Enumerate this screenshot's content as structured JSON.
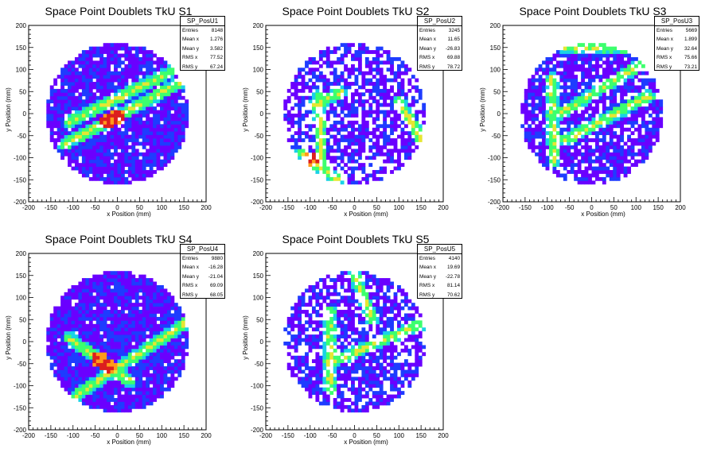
{
  "colors": {
    "white": "#ffffff",
    "violet": "#6a00ff",
    "blue": "#1e3cff",
    "cyan": "#19d2e6",
    "green": "#3cff6e",
    "yellow": "#e6e632",
    "orange": "#ff9a1a",
    "red": "#dc1e1e"
  },
  "chart_data": [
    {
      "type": "heatmap",
      "title": "Space Point Doublets TkU S1",
      "xlabel": "x Position (mm)",
      "ylabel": "y Position (mm)",
      "xlim": [
        -200,
        200
      ],
      "ylim": [
        -200,
        200
      ],
      "xticks": [
        "-200",
        "-150",
        "-100",
        "-50",
        "0",
        "50",
        "100",
        "150",
        "200"
      ],
      "yticks": [
        "-200",
        "-150",
        "-100",
        "-50",
        "0",
        "50",
        "100",
        "150",
        "200"
      ],
      "stats": {
        "name": "SP_PosU1",
        "rows": [
          [
            "Entries",
            "8148"
          ],
          [
            "Mean x",
            "1.276"
          ],
          [
            "Mean y",
            "3.582"
          ],
          [
            "RMS x",
            "77.52"
          ],
          [
            "RMS y",
            "67.24"
          ]
        ]
      },
      "footprint_radius": 160,
      "seed": 11,
      "empty_fraction": 0.08,
      "tracks": [
        {
          "x1": -120,
          "y1": -70,
          "x2": 160,
          "y2": 80,
          "hot": [
            -20,
            0
          ]
        },
        {
          "x1": -110,
          "y1": -20,
          "x2": 150,
          "y2": 110,
          "hot": []
        }
      ]
    },
    {
      "type": "heatmap",
      "title": "Space Point Doublets TkU S2",
      "xlabel": "x Position (mm)",
      "ylabel": "y Position (mm)",
      "xlim": [
        -200,
        200
      ],
      "ylim": [
        -200,
        200
      ],
      "xticks": [
        "-200",
        "-150",
        "-100",
        "-50",
        "0",
        "50",
        "100",
        "150",
        "200"
      ],
      "yticks": [
        "-200",
        "-150",
        "-100",
        "-50",
        "0",
        "50",
        "100",
        "150",
        "200"
      ],
      "stats": {
        "name": "SP_PosU2",
        "rows": [
          [
            "Entries",
            "3245"
          ],
          [
            "Mean x",
            "11.65"
          ],
          [
            "Mean y",
            "-26.83"
          ],
          [
            "RMS x",
            "69.88"
          ],
          [
            "RMS y",
            "78.72"
          ]
        ]
      },
      "footprint_radius": 160,
      "seed": 23,
      "empty_fraction": 0.38,
      "tracks": [
        {
          "x1": -80,
          "y1": 40,
          "x2": -75,
          "y2": -110,
          "hot": []
        },
        {
          "x1": -120,
          "y1": -90,
          "x2": -40,
          "y2": -150,
          "hot": [
            -100
          ]
        },
        {
          "x1": 100,
          "y1": 30,
          "x2": 150,
          "y2": -60,
          "hot": []
        },
        {
          "x1": -90,
          "y1": 20,
          "x2": -30,
          "y2": 50,
          "hot": []
        }
      ]
    },
    {
      "type": "heatmap",
      "title": "Space Point Doublets TkU S3",
      "xlabel": "x Position (mm)",
      "ylabel": "y Position (mm)",
      "xlim": [
        -200,
        200
      ],
      "ylim": [
        -200,
        200
      ],
      "xticks": [
        "-200",
        "-150",
        "-100",
        "-50",
        "0",
        "50",
        "100",
        "150",
        "200"
      ],
      "yticks": [
        "-200",
        "-150",
        "-100",
        "-50",
        "0",
        "50",
        "100",
        "150",
        "200"
      ],
      "stats": {
        "name": "SP_PosU3",
        "rows": [
          [
            "Entries",
            "5669"
          ],
          [
            "Mean x",
            "1.899"
          ],
          [
            "Mean y",
            "32.64"
          ],
          [
            "RMS x",
            "75.66"
          ],
          [
            "RMS y",
            "73.21"
          ]
        ]
      },
      "footprint_radius": 160,
      "seed": 37,
      "empty_fraction": 0.22,
      "tracks": [
        {
          "x1": -90,
          "y1": 80,
          "x2": -85,
          "y2": -110,
          "hot": []
        },
        {
          "x1": -70,
          "y1": 0,
          "x2": 140,
          "y2": 130,
          "hot": []
        },
        {
          "x1": -60,
          "y1": -60,
          "x2": 130,
          "y2": 40,
          "hot": []
        },
        {
          "x1": -60,
          "y1": 150,
          "x2": 120,
          "y2": 150,
          "hot": []
        }
      ]
    },
    {
      "type": "heatmap",
      "title": "Space Point Doublets TkU S4",
      "xlabel": "x Position (mm)",
      "ylabel": "y Position (mm)",
      "xlim": [
        -200,
        200
      ],
      "ylim": [
        -200,
        200
      ],
      "xticks": [
        "-200",
        "-150",
        "-100",
        "-50",
        "0",
        "50",
        "100",
        "150",
        "200"
      ],
      "yticks": [
        "-200",
        "-150",
        "-100",
        "-50",
        "0",
        "50",
        "100",
        "150",
        "200"
      ],
      "stats": {
        "name": "SP_PosU4",
        "rows": [
          [
            "Entries",
            "9880"
          ],
          [
            "Mean x",
            "-16.28"
          ],
          [
            "Mean y",
            "-21.04"
          ],
          [
            "RMS x",
            "69.09"
          ],
          [
            "RMS y",
            "68.05"
          ]
        ]
      },
      "footprint_radius": 160,
      "seed": 41,
      "empty_fraction": 0.05,
      "tracks": [
        {
          "x1": -110,
          "y1": 10,
          "x2": 30,
          "y2": -90,
          "hot": [
            -40,
            -20
          ]
        },
        {
          "x1": -90,
          "y1": -120,
          "x2": 150,
          "y2": 40,
          "hot": []
        }
      ]
    },
    {
      "type": "heatmap",
      "title": "Space Point Doublets TkU S5",
      "xlabel": "x Position (mm)",
      "ylabel": "y Position (mm)",
      "xlim": [
        -200,
        200
      ],
      "ylim": [
        -200,
        200
      ],
      "xticks": [
        "-200",
        "-150",
        "-100",
        "-50",
        "0",
        "50",
        "100",
        "150",
        "200"
      ],
      "yticks": [
        "-200",
        "-150",
        "-100",
        "-50",
        "0",
        "50",
        "100",
        "150",
        "200"
      ],
      "stats": {
        "name": "SP_PosU5",
        "rows": [
          [
            "Entries",
            "4140"
          ],
          [
            "Mean x",
            "19.69"
          ],
          [
            "Mean y",
            "-22.78"
          ],
          [
            "RMS x",
            "81.14"
          ],
          [
            "RMS y",
            "70.62"
          ]
        ]
      },
      "footprint_radius": 160,
      "seed": 53,
      "empty_fraction": 0.3,
      "tracks": [
        {
          "x1": -55,
          "y1": 70,
          "x2": -55,
          "y2": -110,
          "hot": []
        },
        {
          "x1": -60,
          "y1": -50,
          "x2": 150,
          "y2": 40,
          "hot": []
        },
        {
          "x1": 0,
          "y1": 150,
          "x2": 40,
          "y2": 50,
          "hot": []
        }
      ]
    }
  ]
}
